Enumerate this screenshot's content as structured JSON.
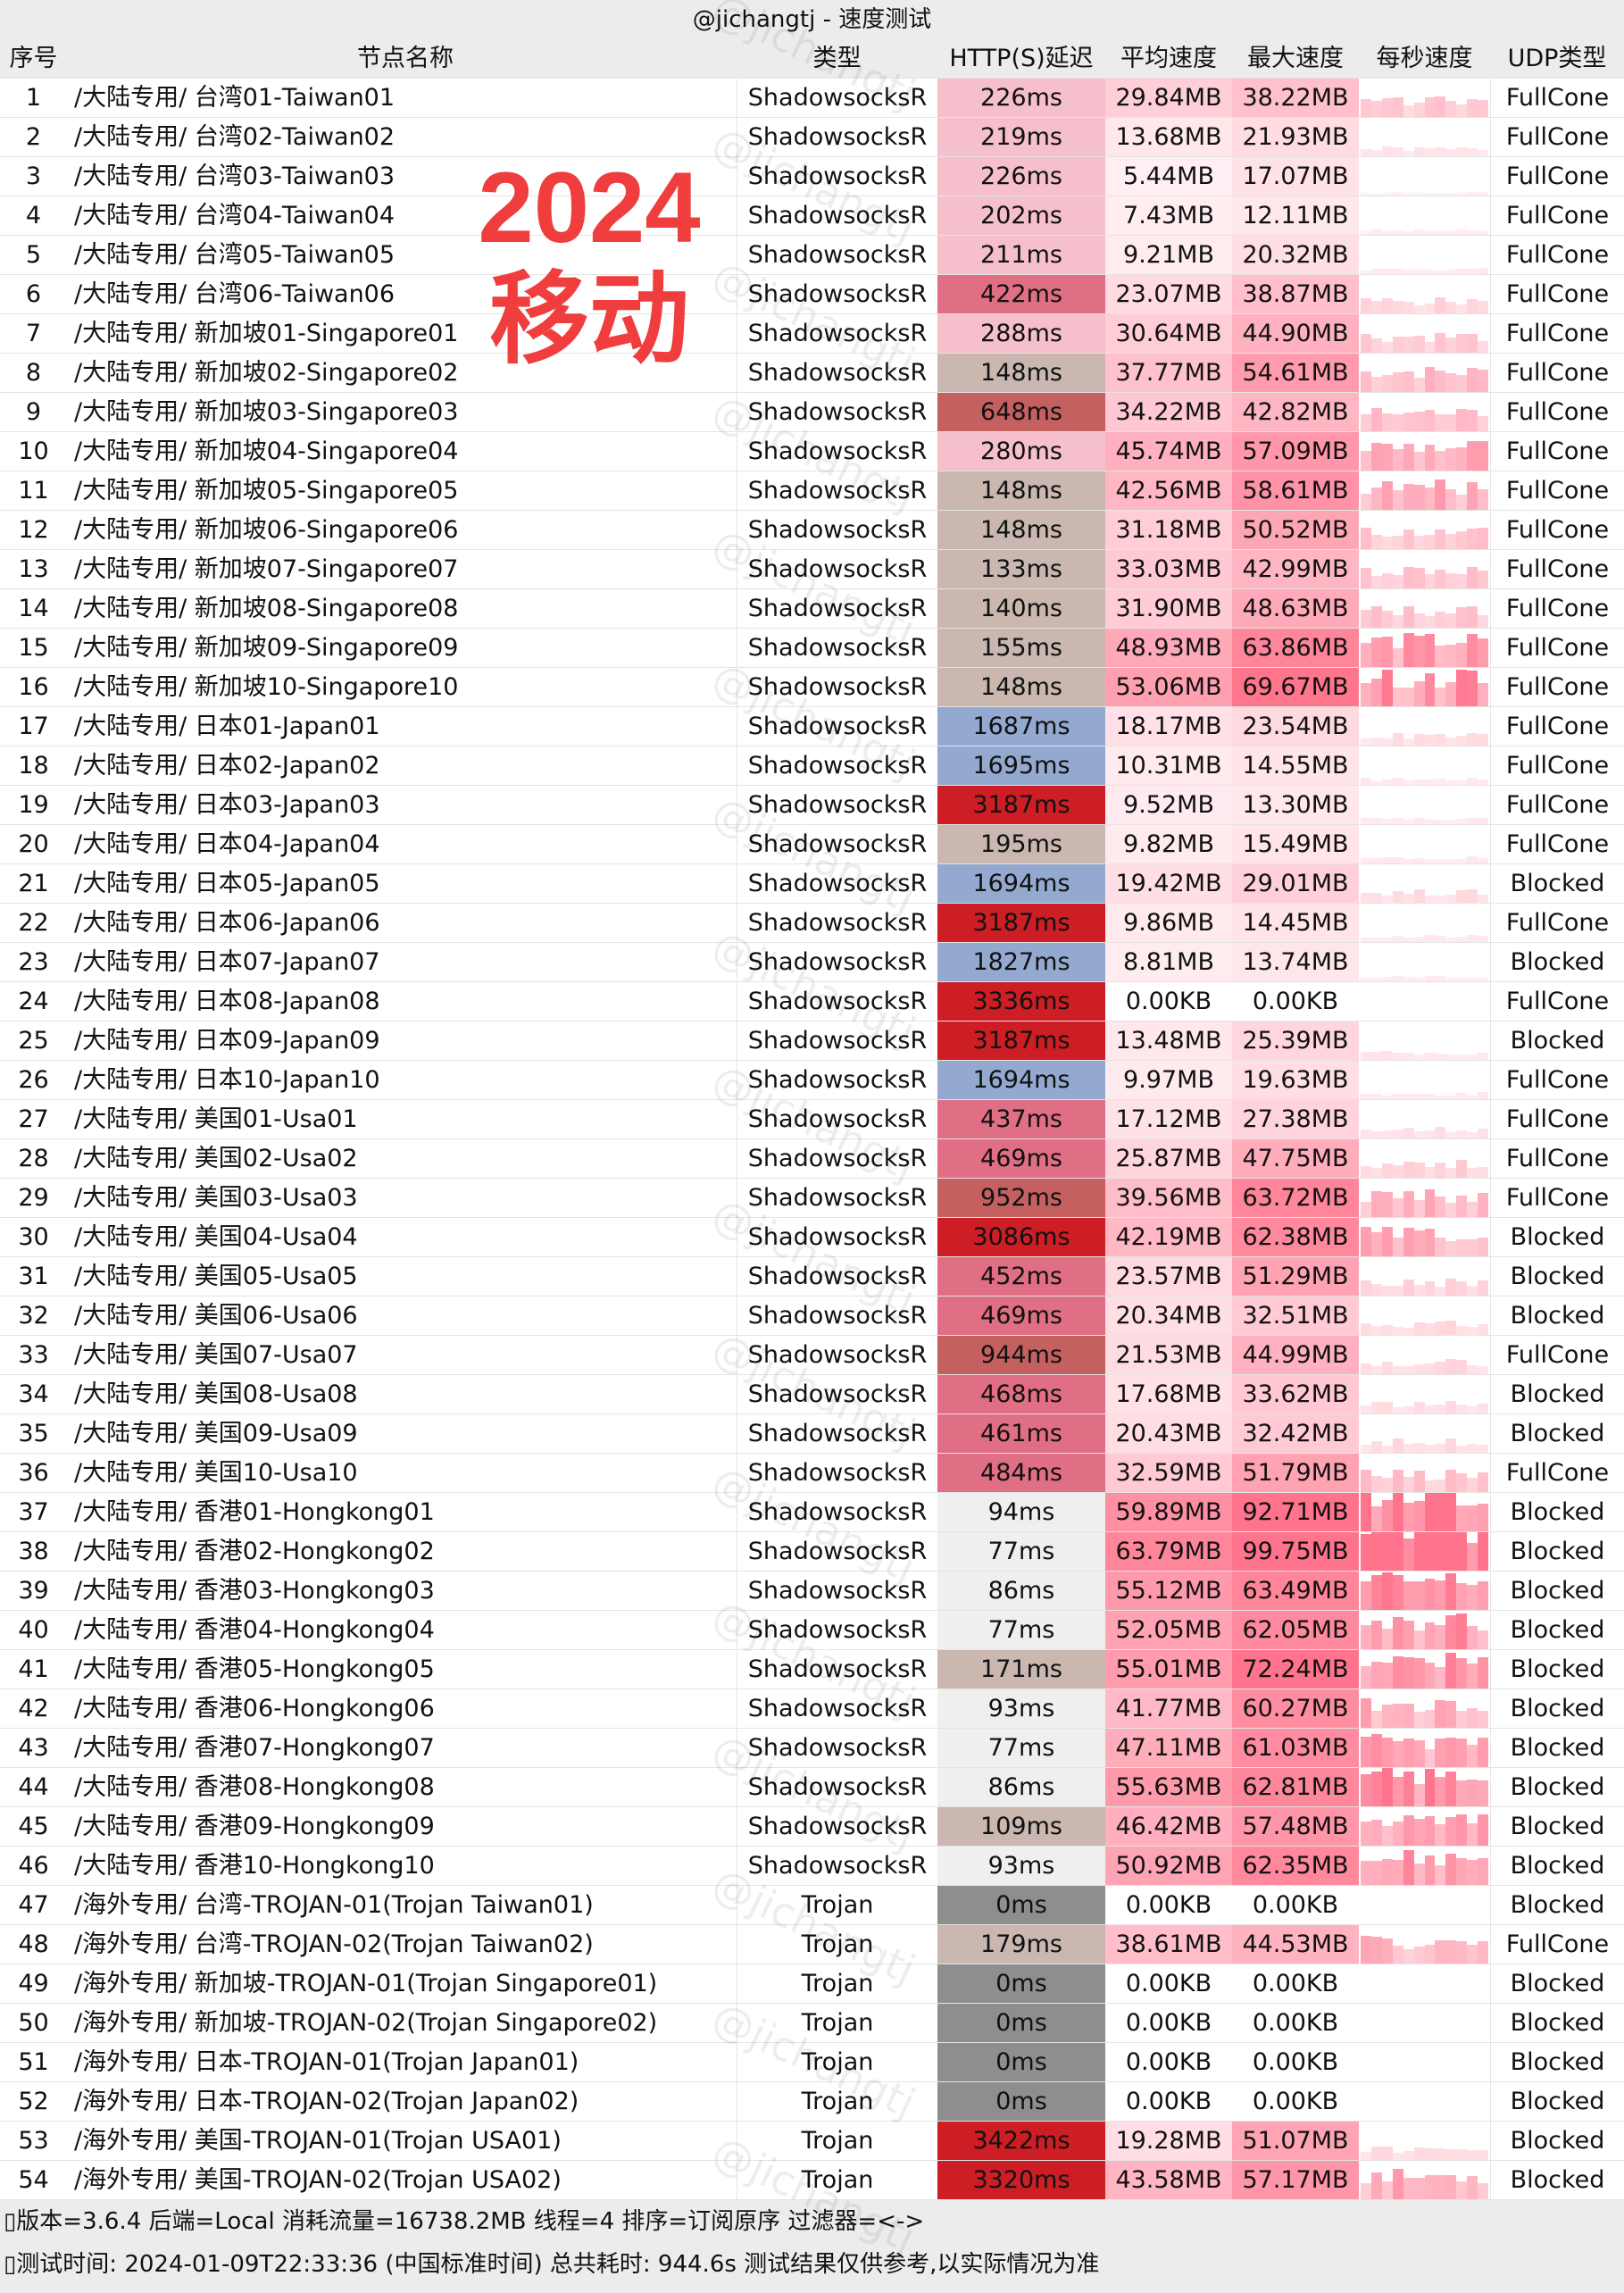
{
  "title": "@jichangtj - 速度测试",
  "headers": [
    "序号",
    "节点名称",
    "类型",
    "HTTP(S)延迟",
    "平均速度",
    "最大速度",
    "每秒速度",
    "UDP类型"
  ],
  "overlay": {
    "line1": "2024",
    "line2": "移动"
  },
  "watermark": "@jichangtj",
  "rows": [
    [
      "1",
      "/大陆专用/ 台湾01-Taiwan01",
      "ShadowsocksR",
      "226ms",
      "29.84MB",
      "38.22MB",
      "FullCone"
    ],
    [
      "2",
      "/大陆专用/ 台湾02-Taiwan02",
      "ShadowsocksR",
      "219ms",
      "13.68MB",
      "21.93MB",
      "FullCone"
    ],
    [
      "3",
      "/大陆专用/ 台湾03-Taiwan03",
      "ShadowsocksR",
      "226ms",
      "5.44MB",
      "17.07MB",
      "FullCone"
    ],
    [
      "4",
      "/大陆专用/ 台湾04-Taiwan04",
      "ShadowsocksR",
      "202ms",
      "7.43MB",
      "12.11MB",
      "FullCone"
    ],
    [
      "5",
      "/大陆专用/ 台湾05-Taiwan05",
      "ShadowsocksR",
      "211ms",
      "9.21MB",
      "20.32MB",
      "FullCone"
    ],
    [
      "6",
      "/大陆专用/ 台湾06-Taiwan06",
      "ShadowsocksR",
      "422ms",
      "23.07MB",
      "38.87MB",
      "FullCone"
    ],
    [
      "7",
      "/大陆专用/ 新加坡01-Singapore01",
      "ShadowsocksR",
      "288ms",
      "30.64MB",
      "44.90MB",
      "FullCone"
    ],
    [
      "8",
      "/大陆专用/ 新加坡02-Singapore02",
      "ShadowsocksR",
      "148ms",
      "37.77MB",
      "54.61MB",
      "FullCone"
    ],
    [
      "9",
      "/大陆专用/ 新加坡03-Singapore03",
      "ShadowsocksR",
      "648ms",
      "34.22MB",
      "42.82MB",
      "FullCone"
    ],
    [
      "10",
      "/大陆专用/ 新加坡04-Singapore04",
      "ShadowsocksR",
      "280ms",
      "45.74MB",
      "57.09MB",
      "FullCone"
    ],
    [
      "11",
      "/大陆专用/ 新加坡05-Singapore05",
      "ShadowsocksR",
      "148ms",
      "42.56MB",
      "58.61MB",
      "FullCone"
    ],
    [
      "12",
      "/大陆专用/ 新加坡06-Singapore06",
      "ShadowsocksR",
      "148ms",
      "31.18MB",
      "50.52MB",
      "FullCone"
    ],
    [
      "13",
      "/大陆专用/ 新加坡07-Singapore07",
      "ShadowsocksR",
      "133ms",
      "33.03MB",
      "42.99MB",
      "FullCone"
    ],
    [
      "14",
      "/大陆专用/ 新加坡08-Singapore08",
      "ShadowsocksR",
      "140ms",
      "31.90MB",
      "48.63MB",
      "FullCone"
    ],
    [
      "15",
      "/大陆专用/ 新加坡09-Singapore09",
      "ShadowsocksR",
      "155ms",
      "48.93MB",
      "63.86MB",
      "FullCone"
    ],
    [
      "16",
      "/大陆专用/ 新加坡10-Singapore10",
      "ShadowsocksR",
      "148ms",
      "53.06MB",
      "69.67MB",
      "FullCone"
    ],
    [
      "17",
      "/大陆专用/ 日本01-Japan01",
      "ShadowsocksR",
      "1687ms",
      "18.17MB",
      "23.54MB",
      "FullCone"
    ],
    [
      "18",
      "/大陆专用/ 日本02-Japan02",
      "ShadowsocksR",
      "1695ms",
      "10.31MB",
      "14.55MB",
      "FullCone"
    ],
    [
      "19",
      "/大陆专用/ 日本03-Japan03",
      "ShadowsocksR",
      "3187ms",
      "9.52MB",
      "13.30MB",
      "FullCone"
    ],
    [
      "20",
      "/大陆专用/ 日本04-Japan04",
      "ShadowsocksR",
      "195ms",
      "9.82MB",
      "15.49MB",
      "FullCone"
    ],
    [
      "21",
      "/大陆专用/ 日本05-Japan05",
      "ShadowsocksR",
      "1694ms",
      "19.42MB",
      "29.01MB",
      "Blocked"
    ],
    [
      "22",
      "/大陆专用/ 日本06-Japan06",
      "ShadowsocksR",
      "3187ms",
      "9.86MB",
      "14.45MB",
      "FullCone"
    ],
    [
      "23",
      "/大陆专用/ 日本07-Japan07",
      "ShadowsocksR",
      "1827ms",
      "8.81MB",
      "13.74MB",
      "Blocked"
    ],
    [
      "24",
      "/大陆专用/ 日本08-Japan08",
      "ShadowsocksR",
      "3336ms",
      "0.00KB",
      "0.00KB",
      "FullCone"
    ],
    [
      "25",
      "/大陆专用/ 日本09-Japan09",
      "ShadowsocksR",
      "3187ms",
      "13.48MB",
      "25.39MB",
      "Blocked"
    ],
    [
      "26",
      "/大陆专用/ 日本10-Japan10",
      "ShadowsocksR",
      "1694ms",
      "9.97MB",
      "19.63MB",
      "FullCone"
    ],
    [
      "27",
      "/大陆专用/ 美国01-Usa01",
      "ShadowsocksR",
      "437ms",
      "17.12MB",
      "27.38MB",
      "FullCone"
    ],
    [
      "28",
      "/大陆专用/ 美国02-Usa02",
      "ShadowsocksR",
      "469ms",
      "25.87MB",
      "47.75MB",
      "FullCone"
    ],
    [
      "29",
      "/大陆专用/ 美国03-Usa03",
      "ShadowsocksR",
      "952ms",
      "39.56MB",
      "63.72MB",
      "FullCone"
    ],
    [
      "30",
      "/大陆专用/ 美国04-Usa04",
      "ShadowsocksR",
      "3086ms",
      "42.19MB",
      "62.38MB",
      "Blocked"
    ],
    [
      "31",
      "/大陆专用/ 美国05-Usa05",
      "ShadowsocksR",
      "452ms",
      "23.57MB",
      "51.29MB",
      "Blocked"
    ],
    [
      "32",
      "/大陆专用/ 美国06-Usa06",
      "ShadowsocksR",
      "469ms",
      "20.34MB",
      "32.51MB",
      "Blocked"
    ],
    [
      "33",
      "/大陆专用/ 美国07-Usa07",
      "ShadowsocksR",
      "944ms",
      "21.53MB",
      "44.99MB",
      "FullCone"
    ],
    [
      "34",
      "/大陆专用/ 美国08-Usa08",
      "ShadowsocksR",
      "468ms",
      "17.68MB",
      "33.62MB",
      "Blocked"
    ],
    [
      "35",
      "/大陆专用/ 美国09-Usa09",
      "ShadowsocksR",
      "461ms",
      "20.43MB",
      "32.42MB",
      "Blocked"
    ],
    [
      "36",
      "/大陆专用/ 美国10-Usa10",
      "ShadowsocksR",
      "484ms",
      "32.59MB",
      "51.79MB",
      "FullCone"
    ],
    [
      "37",
      "/大陆专用/ 香港01-Hongkong01",
      "ShadowsocksR",
      "94ms",
      "59.89MB",
      "92.71MB",
      "Blocked"
    ],
    [
      "38",
      "/大陆专用/ 香港02-Hongkong02",
      "ShadowsocksR",
      "77ms",
      "63.79MB",
      "99.75MB",
      "Blocked"
    ],
    [
      "39",
      "/大陆专用/ 香港03-Hongkong03",
      "ShadowsocksR",
      "86ms",
      "55.12MB",
      "63.49MB",
      "Blocked"
    ],
    [
      "40",
      "/大陆专用/ 香港04-Hongkong04",
      "ShadowsocksR",
      "77ms",
      "52.05MB",
      "62.05MB",
      "Blocked"
    ],
    [
      "41",
      "/大陆专用/ 香港05-Hongkong05",
      "ShadowsocksR",
      "171ms",
      "55.01MB",
      "72.24MB",
      "Blocked"
    ],
    [
      "42",
      "/大陆专用/ 香港06-Hongkong06",
      "ShadowsocksR",
      "93ms",
      "41.77MB",
      "60.27MB",
      "Blocked"
    ],
    [
      "43",
      "/大陆专用/ 香港07-Hongkong07",
      "ShadowsocksR",
      "77ms",
      "47.11MB",
      "61.03MB",
      "Blocked"
    ],
    [
      "44",
      "/大陆专用/ 香港08-Hongkong08",
      "ShadowsocksR",
      "86ms",
      "55.63MB",
      "62.81MB",
      "Blocked"
    ],
    [
      "45",
      "/大陆专用/ 香港09-Hongkong09",
      "ShadowsocksR",
      "109ms",
      "46.42MB",
      "57.48MB",
      "Blocked"
    ],
    [
      "46",
      "/大陆专用/ 香港10-Hongkong10",
      "ShadowsocksR",
      "93ms",
      "50.92MB",
      "62.35MB",
      "Blocked"
    ],
    [
      "47",
      "/海外专用/ 台湾-TROJAN-01(Trojan Taiwan01)",
      "Trojan",
      "0ms",
      "0.00KB",
      "0.00KB",
      "Blocked"
    ],
    [
      "48",
      "/海外专用/ 台湾-TROJAN-02(Trojan Taiwan02)",
      "Trojan",
      "179ms",
      "38.61MB",
      "44.53MB",
      "FullCone"
    ],
    [
      "49",
      "/海外专用/ 新加坡-TROJAN-01(Trojan Singapore01)",
      "Trojan",
      "0ms",
      "0.00KB",
      "0.00KB",
      "Blocked"
    ],
    [
      "50",
      "/海外专用/ 新加坡-TROJAN-02(Trojan Singapore02)",
      "Trojan",
      "0ms",
      "0.00KB",
      "0.00KB",
      "Blocked"
    ],
    [
      "51",
      "/海外专用/ 日本-TROJAN-01(Trojan Japan01)",
      "Trojan",
      "0ms",
      "0.00KB",
      "0.00KB",
      "Blocked"
    ],
    [
      "52",
      "/海外专用/ 日本-TROJAN-02(Trojan Japan02)",
      "Trojan",
      "0ms",
      "0.00KB",
      "0.00KB",
      "Blocked"
    ],
    [
      "53",
      "/海外专用/ 美国-TROJAN-01(Trojan USA01)",
      "Trojan",
      "3422ms",
      "19.28MB",
      "51.07MB",
      "Blocked"
    ],
    [
      "54",
      "/海外专用/ 美国-TROJAN-02(Trojan USA02)",
      "Trojan",
      "3320ms",
      "43.58MB",
      "57.17MB",
      "Blocked"
    ]
  ],
  "footer": {
    "line1": "▯版本=3.6.4  后端=Local  消耗流量=16738.2MB   线程=4  排序=订阅原序  过滤器=<->",
    "line2": "▯测试时间: 2024-01-09T22:33:36 (中国标准时间) 总共耗时: 944.6s 测试结果仅供参考,以实际情况为准"
  }
}
